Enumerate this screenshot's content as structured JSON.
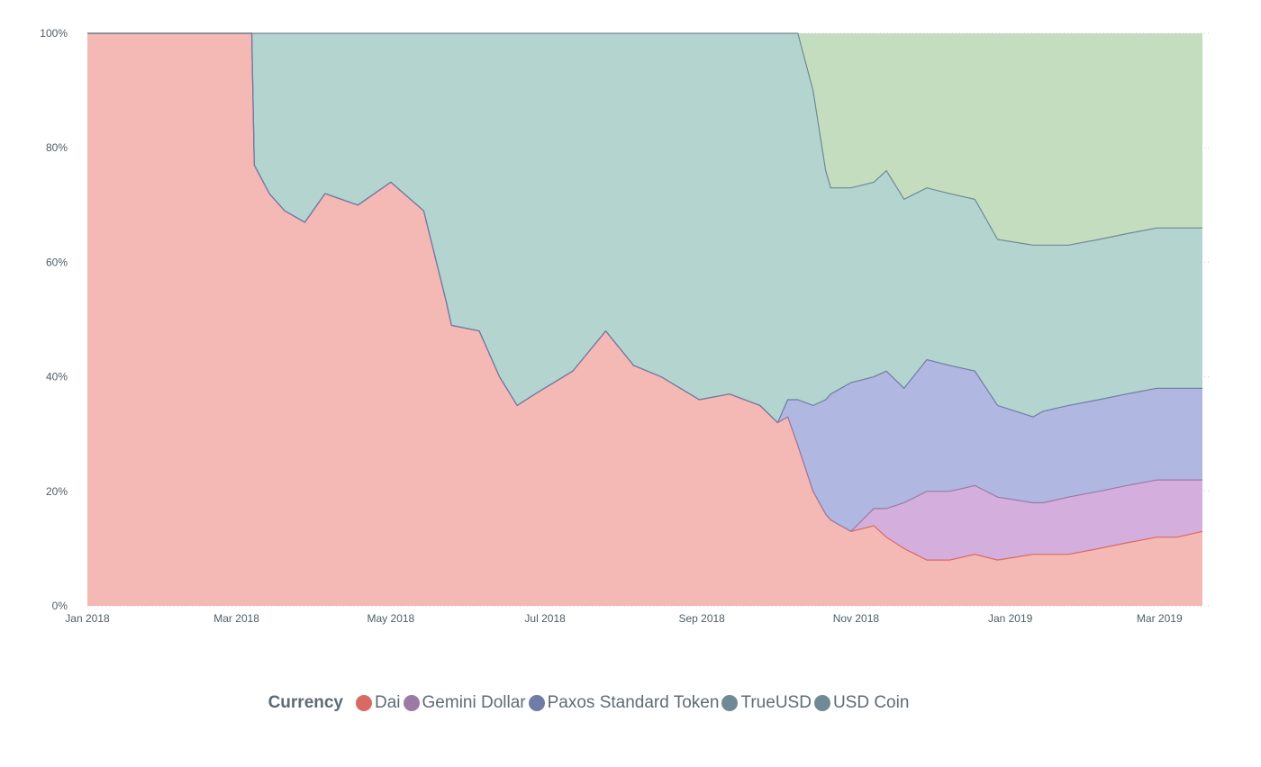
{
  "chart_data": {
    "type": "area",
    "stacked": "percent",
    "title": "",
    "xlabel": "",
    "ylabel": "",
    "ylim": [
      0,
      100
    ],
    "y_ticks": [
      "0%",
      "20%",
      "40%",
      "60%",
      "80%",
      "100%"
    ],
    "y_tick_values": [
      0,
      20,
      40,
      60,
      80,
      100
    ],
    "x_ticks": [
      "Jan 2018",
      "Mar 2018",
      "May 2018",
      "Jul 2018",
      "Sep 2018",
      "Nov 2018",
      "Jan 2019",
      "Mar 2019"
    ],
    "x_tick_dates": [
      "2018-01-01",
      "2018-03-01",
      "2018-05-01",
      "2018-07-01",
      "2018-09-01",
      "2018-11-01",
      "2019-01-01",
      "2019-03-01"
    ],
    "x_range": [
      "2018-01-01",
      "2019-03-18"
    ],
    "grid": "horizontal-dotted",
    "legend_position": "bottom",
    "legend_title": "Currency",
    "x": [
      "2018-01-01",
      "2018-03-07",
      "2018-03-08",
      "2018-03-14",
      "2018-03-20",
      "2018-03-28",
      "2018-04-05",
      "2018-04-18",
      "2018-05-01",
      "2018-05-14",
      "2018-05-23",
      "2018-05-25",
      "2018-06-05",
      "2018-06-13",
      "2018-06-20",
      "2018-06-27",
      "2018-07-12",
      "2018-07-25",
      "2018-08-05",
      "2018-08-16",
      "2018-08-31",
      "2018-09-12",
      "2018-09-24",
      "2018-10-01",
      "2018-10-05",
      "2018-10-09",
      "2018-10-15",
      "2018-10-20",
      "2018-10-22",
      "2018-10-26",
      "2018-10-30",
      "2018-11-08",
      "2018-11-13",
      "2018-11-20",
      "2018-11-29",
      "2018-12-08",
      "2018-12-18",
      "2018-12-27",
      "2019-01-10",
      "2019-01-14",
      "2019-01-24",
      "2019-02-05",
      "2019-02-16",
      "2019-02-28",
      "2019-03-08",
      "2019-03-18"
    ],
    "series": [
      {
        "name": "Dai",
        "color": "#f4b9b4",
        "line": "#d96a63",
        "values": [
          100,
          100,
          77,
          72,
          69,
          67,
          72,
          70,
          74,
          69,
          53,
          49,
          48,
          40,
          35,
          37,
          41,
          48,
          42,
          40,
          36,
          37,
          35,
          32,
          33,
          28,
          20,
          16,
          15,
          14,
          13,
          14,
          12,
          10,
          8,
          8,
          9,
          8,
          9,
          9,
          9,
          10,
          11,
          12,
          12,
          13
        ]
      },
      {
        "name": "Gemini Dollar",
        "color": "#d4aedc",
        "line": "#9b7aa6",
        "values": [
          0,
          0,
          0,
          0,
          0,
          0,
          0,
          0,
          0,
          0,
          0,
          0,
          0,
          0,
          0,
          0,
          0,
          0,
          0,
          0,
          0,
          0,
          0,
          0,
          0,
          0,
          0,
          0,
          0,
          0,
          0,
          3,
          5,
          8,
          12,
          12,
          12,
          11,
          9,
          9,
          10,
          10,
          10,
          10,
          10,
          9
        ]
      },
      {
        "name": "Paxos Standard Token",
        "color": "#b0b7e0",
        "line": "#6f7ca5",
        "values": [
          0,
          0,
          0,
          0,
          0,
          0,
          0,
          0,
          0,
          0,
          0,
          0,
          0,
          0,
          0,
          0,
          0,
          0,
          0,
          0,
          0,
          0,
          0,
          0,
          3,
          8,
          15,
          20,
          22,
          24,
          26,
          23,
          24,
          20,
          23,
          22,
          20,
          16,
          15,
          16,
          16,
          16,
          16,
          16,
          16,
          16
        ]
      },
      {
        "name": "TrueUSD",
        "color": "#b3d4cf",
        "line": "#6f8a96",
        "values": [
          0,
          0,
          23,
          28,
          31,
          33,
          28,
          30,
          26,
          31,
          47,
          51,
          52,
          60,
          65,
          63,
          59,
          52,
          58,
          60,
          64,
          63,
          65,
          68,
          64,
          64,
          55,
          40,
          36,
          35,
          34,
          34,
          35,
          33,
          30,
          30,
          30,
          29,
          30,
          29,
          28,
          28,
          28,
          28,
          28,
          28
        ]
      },
      {
        "name": "USD Coin",
        "color": "#c4ddbf",
        "line": "#6f8a96",
        "values": [
          0,
          0,
          0,
          0,
          0,
          0,
          0,
          0,
          0,
          0,
          0,
          0,
          0,
          0,
          0,
          0,
          0,
          0,
          0,
          0,
          0,
          0,
          0,
          0,
          0,
          0,
          10,
          24,
          27,
          27,
          27,
          29,
          29,
          29,
          27,
          28,
          29,
          36,
          37,
          37,
          37,
          36,
          35,
          34,
          34,
          34
        ]
      }
    ]
  }
}
